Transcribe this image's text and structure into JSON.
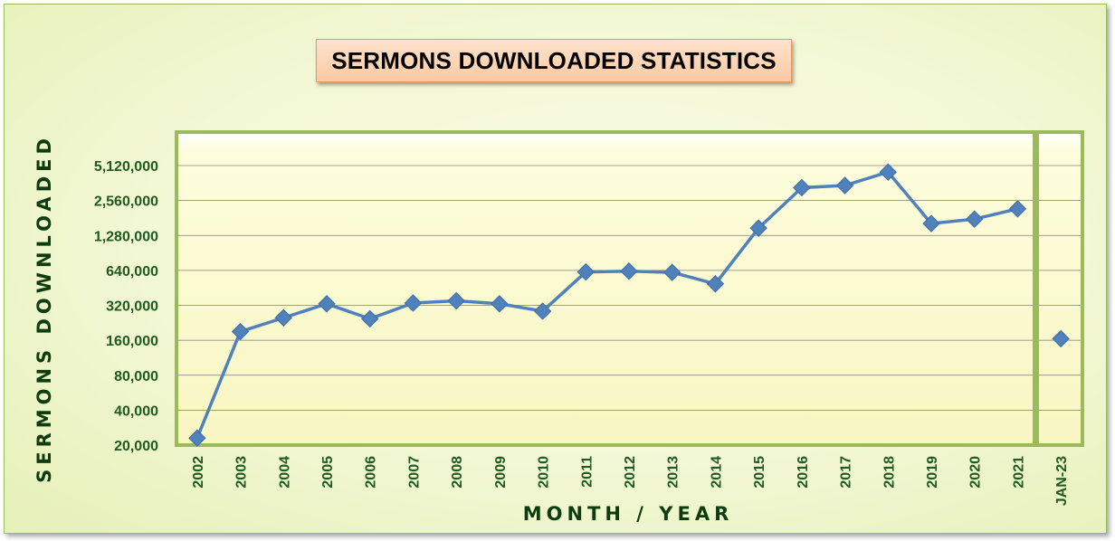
{
  "chart_data": {
    "type": "line",
    "title": "SERMONS DOWNLOADED STATISTICS",
    "xlabel": "MONTH / YEAR",
    "ylabel": "SERMONS DOWNLOADED",
    "y_scale": "log2",
    "ylim": [
      20000,
      5120000
    ],
    "y_ticks": [
      20000,
      40000,
      80000,
      160000,
      320000,
      640000,
      1280000,
      2560000,
      5120000
    ],
    "y_tick_labels": [
      "20,000",
      "40,000",
      "80,000",
      "160,000",
      "320,000",
      "640,000",
      "1,280,000",
      "2,560,000",
      "5,120,000"
    ],
    "categories": [
      "2002",
      "2003",
      "2004",
      "2005",
      "2006",
      "2007",
      "2008",
      "2009",
      "2010",
      "2011",
      "2012",
      "2013",
      "2014",
      "2015",
      "2016",
      "2017",
      "2018",
      "2019",
      "2020",
      "2021",
      "JAN-23"
    ],
    "series": [
      {
        "name": "",
        "values": [
          23000,
          190000,
          250000,
          330000,
          245000,
          335000,
          350000,
          330000,
          285000,
          620000,
          630000,
          615000,
          490000,
          1480000,
          3300000,
          3450000,
          4500000,
          1620000,
          1770000,
          2170000,
          null
        ],
        "color": "#4f81bd"
      },
      {
        "name": "",
        "values": [
          null,
          null,
          null,
          null,
          null,
          null,
          null,
          null,
          null,
          null,
          null,
          null,
          null,
          null,
          null,
          null,
          null,
          null,
          null,
          null,
          165000
        ],
        "color": "#4f81bd"
      }
    ],
    "grid": true,
    "legend": "none",
    "colors": {
      "plot_border": "#9bbb59",
      "tick_text": "#1f5a1f",
      "axis_title": "#0d3d0d",
      "title_box": "#fbd4b4",
      "separator": "#9bbb59"
    }
  }
}
